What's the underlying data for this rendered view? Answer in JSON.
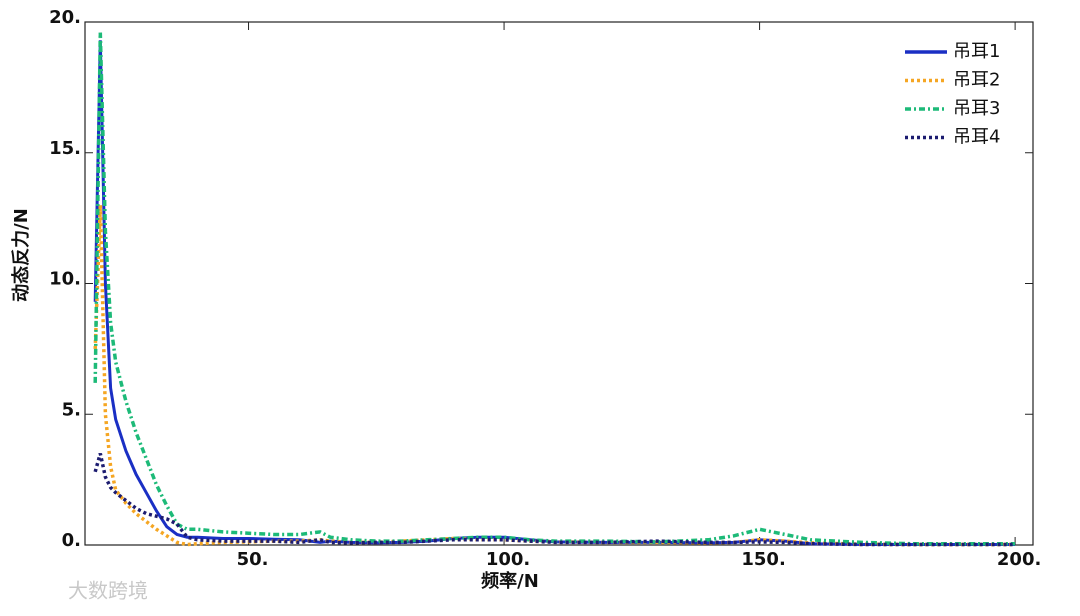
{
  "chart_data": {
    "type": "line",
    "x_label": "频率/N",
    "y_label": "动态反力/N",
    "x": [
      20,
      21,
      22,
      23,
      24,
      26,
      28,
      30,
      32,
      34,
      36,
      38,
      40,
      45,
      50,
      55,
      60,
      64,
      66,
      70,
      75,
      80,
      85,
      90,
      95,
      100,
      105,
      110,
      120,
      130,
      140,
      145,
      150,
      155,
      160,
      170,
      180,
      190,
      200
    ],
    "series": [
      {
        "name": "吊耳1",
        "color": "#1a2fc4",
        "dash": "solid",
        "values": [
          9.3,
          19.3,
          10,
          6,
          4.8,
          3.6,
          2.7,
          2,
          1.3,
          0.7,
          0.4,
          0.3,
          0.3,
          0.25,
          0.25,
          0.22,
          0.2,
          0.1,
          0.15,
          0.1,
          0.08,
          0.1,
          0.15,
          0.25,
          0.3,
          0.3,
          0.2,
          0.12,
          0.1,
          0.1,
          0.08,
          0.1,
          0.2,
          0.15,
          0.05,
          0.02,
          0.02,
          0.02,
          0.02
        ]
      },
      {
        "name": "吊耳2",
        "color": "#f5a623",
        "dash": "dotted",
        "values": [
          7.5,
          13,
          5,
          3,
          2.1,
          1.6,
          1.2,
          0.9,
          0.6,
          0.35,
          0.1,
          0.02,
          0.05,
          0.1,
          0.12,
          0.15,
          0.15,
          0.2,
          0.15,
          0.1,
          0.1,
          0.15,
          0.2,
          0.25,
          0.2,
          0.2,
          0.15,
          0.12,
          0.1,
          0.1,
          0.08,
          0.1,
          0.2,
          0.15,
          0.08,
          0.03,
          0.02,
          0.02,
          0.02
        ]
      },
      {
        "name": "吊耳3",
        "color": "#1dba78",
        "dash": "dashdot",
        "values": [
          6.2,
          19.6,
          12,
          8.5,
          7,
          5.5,
          4.3,
          3.3,
          2.3,
          1.5,
          0.8,
          0.6,
          0.6,
          0.5,
          0.45,
          0.4,
          0.4,
          0.5,
          0.3,
          0.2,
          0.15,
          0.15,
          0.2,
          0.25,
          0.3,
          0.3,
          0.2,
          0.15,
          0.15,
          0.12,
          0.2,
          0.35,
          0.6,
          0.4,
          0.2,
          0.1,
          0.05,
          0.05,
          0.05
        ]
      },
      {
        "name": "吊耳4",
        "color": "#1c1c70",
        "dash": "dotted",
        "values": [
          2.8,
          3.5,
          2.6,
          2.2,
          2,
          1.7,
          1.4,
          1.2,
          1.1,
          1,
          0.8,
          0.3,
          0.2,
          0.15,
          0.15,
          0.15,
          0.1,
          0.2,
          0.1,
          0.08,
          0.1,
          0.1,
          0.15,
          0.2,
          0.2,
          0.2,
          0.15,
          0.1,
          0.1,
          0.15,
          0.1,
          0.1,
          0.12,
          0.1,
          0.05,
          0.02,
          0.02,
          0.02,
          0.02
        ]
      }
    ],
    "xlim": [
      18,
      203.5
    ],
    "ylim": [
      0,
      20
    ],
    "xticks": [
      {
        "value": 50,
        "label": "50."
      },
      {
        "value": 100,
        "label": "100."
      },
      {
        "value": 150,
        "label": "150."
      },
      {
        "value": 200,
        "label": "200."
      }
    ],
    "yticks": [
      {
        "value": 0,
        "label": "0."
      },
      {
        "value": 5,
        "label": "5."
      },
      {
        "value": 10,
        "label": "10."
      },
      {
        "value": 15,
        "label": "15."
      },
      {
        "value": 20,
        "label": "20."
      }
    ],
    "legend": "upper-right",
    "watermark": "大数跨境"
  }
}
